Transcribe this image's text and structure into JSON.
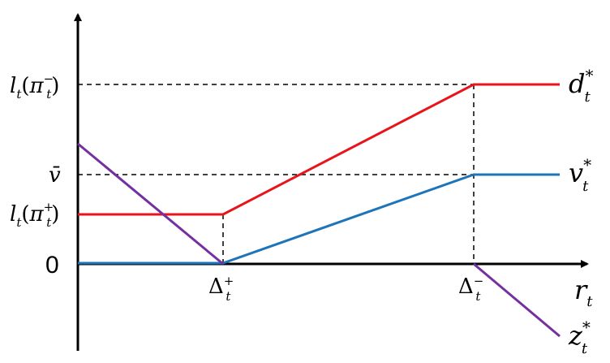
{
  "chart_data": {
    "type": "line",
    "title": "",
    "xlabel": {
      "base": "r",
      "sub": "t"
    },
    "ylabel": "",
    "y_ticks": [
      {
        "key": "lt_minus",
        "base": "l",
        "sub": "t",
        "arg": "π",
        "arg_sup": "−",
        "arg_sub": "t"
      },
      {
        "key": "vbar",
        "text": "v̄"
      },
      {
        "key": "lt_plus",
        "base": "l",
        "sub": "t",
        "arg": "π",
        "arg_sup": "+",
        "arg_sub": "t"
      },
      {
        "key": "zero",
        "text": "0"
      }
    ],
    "x_ticks": [
      {
        "key": "delta_plus",
        "base": "Δ",
        "sup": "+",
        "sub": "t"
      },
      {
        "key": "delta_minus",
        "base": "Δ",
        "sup": "−",
        "sub": "t"
      }
    ],
    "series": [
      {
        "key": "d",
        "base": "d",
        "sup": "*",
        "sub": "t",
        "color": "#e8141b"
      },
      {
        "key": "v",
        "base": "v",
        "sup": "*",
        "sub": "t",
        "color": "#1d74b8"
      },
      {
        "key": "z",
        "base": "z",
        "sup": "*",
        "sub": "t",
        "color": "#7430a0"
      }
    ],
    "grid": false,
    "legend": "right-end labels"
  }
}
